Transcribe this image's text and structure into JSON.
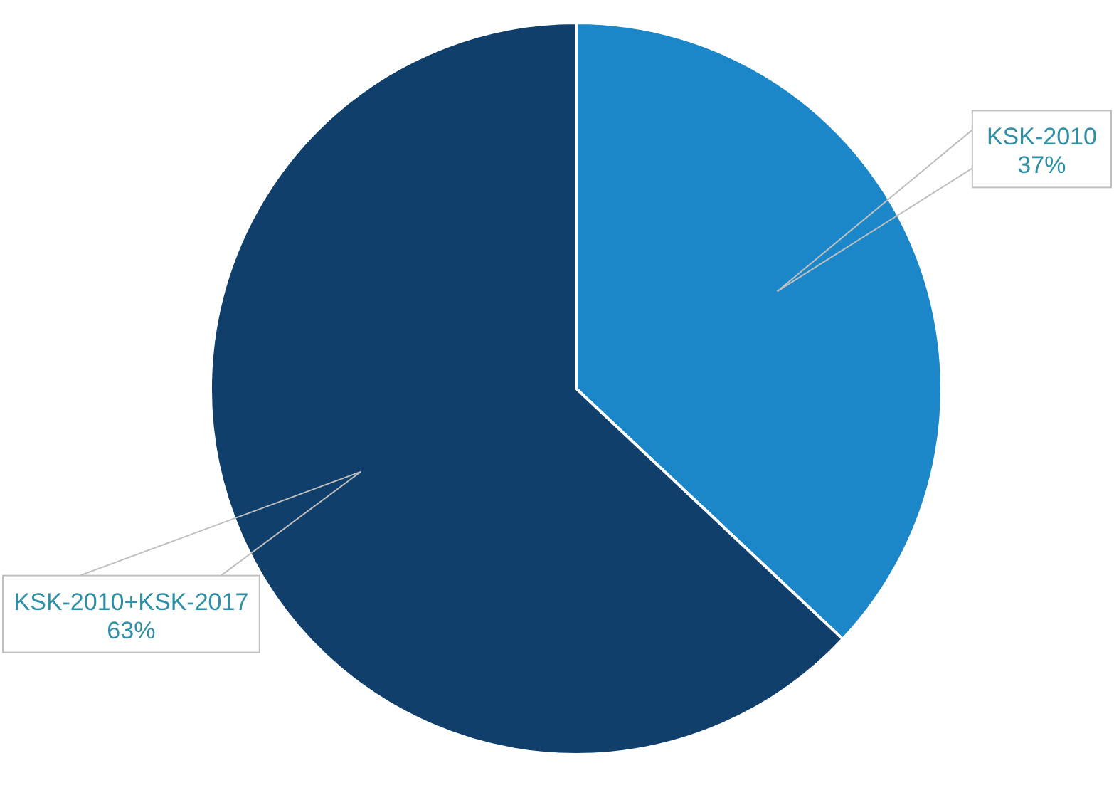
{
  "chart_data": {
    "type": "pie",
    "categories": [
      "KSK-2010",
      "KSK-2010+KSK-2017"
    ],
    "values": [
      37,
      63
    ],
    "colors": [
      "#1b87c9",
      "#0f3f6a"
    ],
    "value_labels": [
      "37%",
      "63%"
    ]
  }
}
